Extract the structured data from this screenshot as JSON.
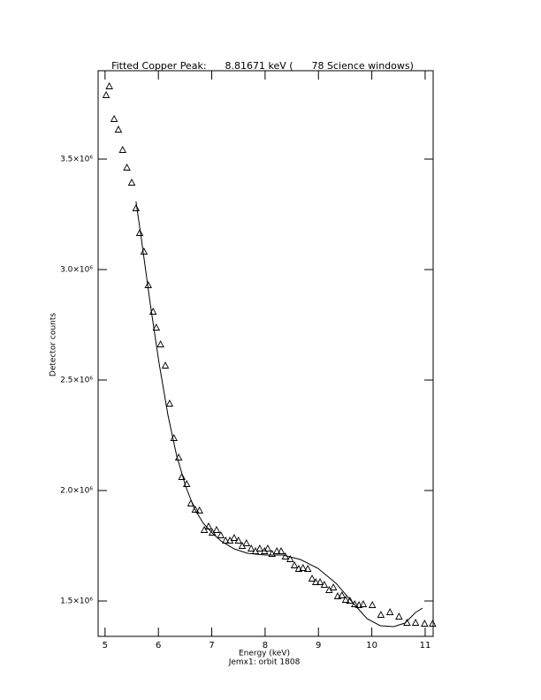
{
  "chart_data": {
    "type": "scatter",
    "title": "Fitted Copper Peak:      8.81671 keV (      78 Science windows)",
    "x_label": "Energy (keV)",
    "subtitle": "Jemx1: orbit 1808",
    "y_label": "Detector counts",
    "xlim": [
      4.87,
      11.15
    ],
    "ylim": [
      1340000,
      3900000
    ],
    "xticks": [
      5,
      6,
      7,
      8,
      9,
      10,
      11
    ],
    "yticks": [
      {
        "value": 1500000,
        "label": "1.5×10⁶"
      },
      {
        "value": 2000000,
        "label": "2.0×10⁶"
      },
      {
        "value": 2500000,
        "label": "2.5×10⁶"
      },
      {
        "value": 3000000,
        "label": "3.0×10⁶"
      },
      {
        "value": 3500000,
        "label": "3.5×10⁶"
      }
    ],
    "grid": false,
    "series": [
      {
        "type": "scatter",
        "marker": "triangle",
        "color": "#000000",
        "x": [
          5.02,
          5.08,
          5.17,
          5.25,
          5.33,
          5.41,
          5.5,
          5.58,
          5.65,
          5.73,
          5.81,
          5.9,
          5.96,
          6.04,
          6.13,
          6.21,
          6.29,
          6.38,
          6.44,
          6.53,
          6.61,
          6.69,
          6.77,
          6.86,
          6.94,
          7.01,
          7.09,
          7.17,
          7.26,
          7.34,
          7.42,
          7.5,
          7.57,
          7.65,
          7.74,
          7.82,
          7.9,
          7.99,
          8.05,
          8.13,
          8.22,
          8.3,
          8.38,
          8.47,
          8.55,
          8.63,
          8.71,
          8.8,
          8.88,
          8.95,
          9.03,
          9.11,
          9.2,
          9.28,
          9.36,
          9.44,
          9.51,
          9.59,
          9.68,
          9.76,
          9.84,
          10.01,
          10.17,
          10.34,
          10.51,
          10.66,
          10.82,
          10.99,
          11.14
        ],
        "values": [
          3788000,
          3828000,
          3680000,
          3632000,
          3540000,
          3460000,
          3392000,
          3276000,
          3164000,
          3080000,
          2928000,
          2808000,
          2736000,
          2660000,
          2564000,
          2392000,
          2236000,
          2148000,
          2060000,
          2028000,
          1940000,
          1912000,
          1908000,
          1820000,
          1836000,
          1808000,
          1820000,
          1796000,
          1772000,
          1772000,
          1784000,
          1772000,
          1748000,
          1760000,
          1736000,
          1724000,
          1736000,
          1724000,
          1736000,
          1712000,
          1724000,
          1724000,
          1700000,
          1688000,
          1660000,
          1644000,
          1648000,
          1644000,
          1600000,
          1584000,
          1584000,
          1572000,
          1548000,
          1560000,
          1520000,
          1524000,
          1504000,
          1500000,
          1484000,
          1480000,
          1484000,
          1480000,
          1436000,
          1448000,
          1428000,
          1400000,
          1400000,
          1396000,
          1396000
        ]
      },
      {
        "type": "line",
        "color": "#000000",
        "x": [
          5.58,
          5.68,
          5.85,
          6.01,
          6.18,
          6.34,
          6.51,
          6.67,
          6.84,
          7.01,
          7.17,
          7.42,
          7.67,
          8.0,
          8.33,
          8.66,
          8.99,
          9.33,
          9.66,
          9.91,
          10.16,
          10.41,
          10.62,
          10.82,
          10.95
        ],
        "values": [
          3308000,
          3140000,
          2840000,
          2580000,
          2340000,
          2160000,
          2020000,
          1920000,
          1852000,
          1808000,
          1772000,
          1736000,
          1716000,
          1708000,
          1708000,
          1688000,
          1648000,
          1580000,
          1488000,
          1420000,
          1388000,
          1384000,
          1400000,
          1448000,
          1468000
        ]
      }
    ]
  }
}
